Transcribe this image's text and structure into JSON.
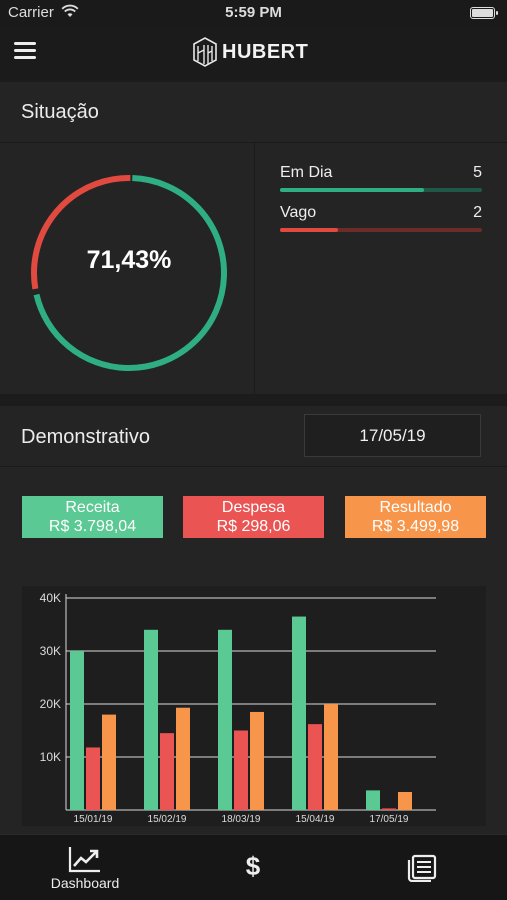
{
  "status_bar": {
    "carrier": "Carrier",
    "time": "5:59 PM"
  },
  "header": {
    "brand": "HUBERT",
    "menu_icon": "hamburger-icon",
    "logo_icon": "hubert-logo-icon"
  },
  "situacao": {
    "title": "Situação",
    "percent_label": "71,43%",
    "donut_fraction": 0.7143,
    "colors": {
      "em_dia": "#2fae84",
      "vago": "#e14a3f"
    },
    "legend": [
      {
        "label": "Em Dia",
        "count": "5",
        "fraction": 0.714,
        "color": "#2fae84",
        "track": "#1e5948"
      },
      {
        "label": "Vago",
        "count": "2",
        "fraction": 0.286,
        "color": "#e14a3f",
        "track": "#6b2c27"
      }
    ]
  },
  "demonstrativo": {
    "title": "Demonstrativo",
    "date": "17/05/19",
    "summary": [
      {
        "label": "Receita",
        "value": "R$ 3.798,04",
        "color": "#5bc993"
      },
      {
        "label": "Despesa",
        "value": "R$ 298,06",
        "color": "#ea5553"
      },
      {
        "label": "Resultado",
        "value": "R$ 3.499,98",
        "color": "#f7964a"
      }
    ]
  },
  "chart_data": {
    "type": "bar",
    "categories": [
      "15/01/19",
      "15/02/19",
      "18/03/19",
      "15/04/19",
      "17/05/19"
    ],
    "series": [
      {
        "values": [
          30000,
          34000,
          34000,
          36500,
          3700
        ],
        "color": "#5bc993"
      },
      {
        "values": [
          11800,
          14500,
          15000,
          16200,
          300
        ],
        "color": "#ea5553"
      },
      {
        "values": [
          18000,
          19300,
          18500,
          20000,
          3400
        ],
        "color": "#f7964a"
      }
    ],
    "yticks": [
      "10K",
      "20K",
      "30K",
      "40K"
    ],
    "ylim": [
      0,
      40000
    ],
    "grid": true
  },
  "tabbar": {
    "items": [
      {
        "label": "Dashboard",
        "icon": "trending-chart-icon"
      },
      {
        "label": "",
        "icon": "dollar-icon",
        "glyph": "$"
      },
      {
        "label": "",
        "icon": "news-list-icon"
      }
    ]
  }
}
